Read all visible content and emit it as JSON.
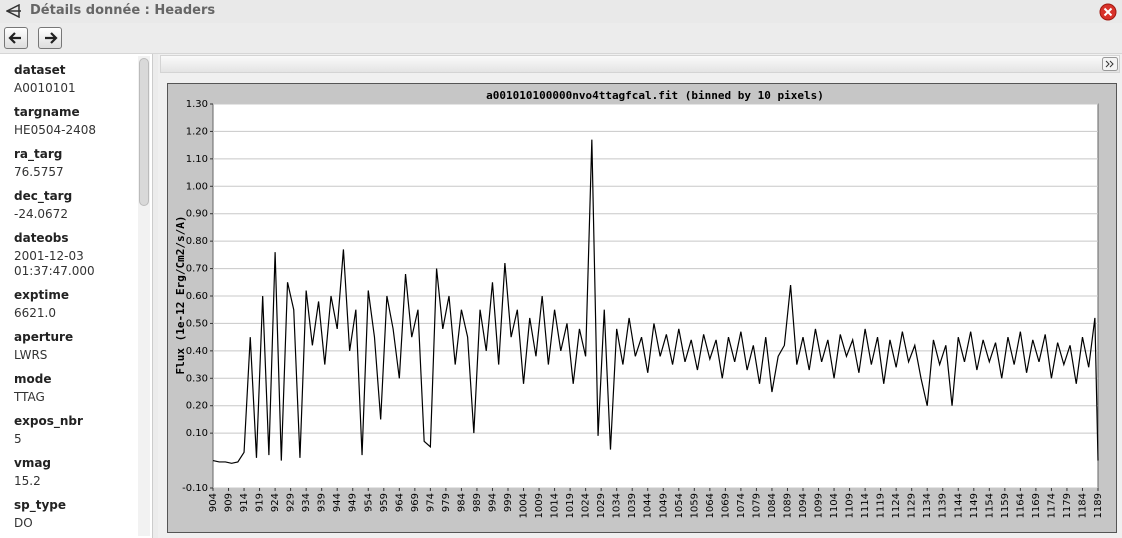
{
  "header": {
    "title": "Détails donnée : Headers"
  },
  "sidebar": {
    "fields": [
      {
        "label": "dataset",
        "value": "A0010101"
      },
      {
        "label": "targname",
        "value": "HE0504-2408"
      },
      {
        "label": "ra_targ",
        "value": "76.5757"
      },
      {
        "label": "dec_targ",
        "value": "-24.0672"
      },
      {
        "label": "dateobs",
        "value": "2001-12-03 01:37:47.000"
      },
      {
        "label": "exptime",
        "value": "6621.0"
      },
      {
        "label": "aperture",
        "value": "LWRS"
      },
      {
        "label": "mode",
        "value": "TTAG"
      },
      {
        "label": "expos_nbr",
        "value": "5"
      },
      {
        "label": "vmag",
        "value": "15.2"
      },
      {
        "label": "sp_type",
        "value": "DO"
      }
    ]
  },
  "chart_data": {
    "type": "line",
    "title": "a001010100000nvo4ttagfcal.fit (binned by 10 pixels)",
    "y_label": "Flux (1e-12 Erg/Cm2/s/A)",
    "color": "#000000",
    "grid": true,
    "x": [
      904,
      906,
      908,
      910,
      912,
      914,
      916,
      918,
      920,
      922,
      924,
      926,
      928,
      930,
      932,
      934,
      936,
      938,
      940,
      942,
      944,
      946,
      948,
      950,
      952,
      954,
      956,
      958,
      960,
      962,
      964,
      966,
      968,
      970,
      972,
      974,
      976,
      978,
      980,
      982,
      984,
      986,
      988,
      990,
      992,
      994,
      996,
      998,
      1000,
      1002,
      1004,
      1006,
      1008,
      1010,
      1012,
      1014,
      1016,
      1018,
      1020,
      1022,
      1024,
      1026,
      1028,
      1030,
      1032,
      1034,
      1036,
      1038,
      1040,
      1042,
      1044,
      1046,
      1048,
      1050,
      1052,
      1054,
      1056,
      1058,
      1060,
      1062,
      1064,
      1066,
      1068,
      1070,
      1072,
      1074,
      1076,
      1078,
      1080,
      1082,
      1084,
      1086,
      1088,
      1090,
      1092,
      1094,
      1096,
      1098,
      1100,
      1102,
      1104,
      1106,
      1108,
      1110,
      1112,
      1114,
      1116,
      1118,
      1120,
      1122,
      1124,
      1126,
      1128,
      1130,
      1132,
      1134,
      1136,
      1138,
      1140,
      1142,
      1144,
      1146,
      1148,
      1150,
      1152,
      1154,
      1156,
      1158,
      1160,
      1162,
      1164,
      1166,
      1168,
      1170,
      1172,
      1174,
      1176,
      1178,
      1180,
      1182,
      1184,
      1186,
      1188,
      1189
    ],
    "values": [
      0,
      -0.005,
      -0.005,
      -0.01,
      -0.005,
      0.03,
      0.45,
      0.01,
      0.6,
      0.02,
      0.76,
      0,
      0.65,
      0.55,
      0.01,
      0.62,
      0.42,
      0.58,
      0.35,
      0.6,
      0.48,
      0.77,
      0.4,
      0.55,
      0.02,
      0.62,
      0.45,
      0.15,
      0.6,
      0.48,
      0.3,
      0.68,
      0.45,
      0.55,
      0.07,
      0.05,
      0.7,
      0.48,
      0.6,
      0.35,
      0.55,
      0.45,
      0.1,
      0.55,
      0.4,
      0.65,
      0.35,
      0.72,
      0.45,
      0.55,
      0.28,
      0.52,
      0.38,
      0.6,
      0.35,
      0.55,
      0.4,
      0.5,
      0.28,
      0.48,
      0.38,
      1.17,
      0.09,
      0.55,
      0.04,
      0.48,
      0.35,
      0.52,
      0.38,
      0.45,
      0.32,
      0.5,
      0.38,
      0.46,
      0.35,
      0.48,
      0.36,
      0.44,
      0.33,
      0.46,
      0.37,
      0.44,
      0.3,
      0.45,
      0.36,
      0.47,
      0.33,
      0.42,
      0.28,
      0.45,
      0.25,
      0.38,
      0.42,
      0.64,
      0.35,
      0.45,
      0.33,
      0.48,
      0.36,
      0.44,
      0.3,
      0.46,
      0.38,
      0.44,
      0.32,
      0.48,
      0.35,
      0.45,
      0.28,
      0.44,
      0.34,
      0.47,
      0.36,
      0.42,
      0.3,
      0.2,
      0.44,
      0.35,
      0.42,
      0.2,
      0.45,
      0.36,
      0.47,
      0.33,
      0.44,
      0.36,
      0.43,
      0.3,
      0.45,
      0.35,
      0.47,
      0.32,
      0.44,
      0.36,
      0.46,
      0.3,
      0.43,
      0.35,
      0.42,
      0.28,
      0.45,
      0.34,
      0.52,
      0
    ],
    "xlim": [
      904,
      1189
    ],
    "xticks": [
      904,
      909,
      914,
      919,
      924,
      929,
      934,
      939,
      944,
      949,
      954,
      959,
      964,
      969,
      974,
      979,
      984,
      989,
      994,
      999,
      1004,
      1009,
      1014,
      1019,
      1024,
      1029,
      1034,
      1039,
      1044,
      1049,
      1054,
      1059,
      1064,
      1069,
      1074,
      1079,
      1084,
      1089,
      1094,
      1099,
      1104,
      1109,
      1114,
      1119,
      1124,
      1129,
      1134,
      1139,
      1144,
      1149,
      1154,
      1159,
      1164,
      1169,
      1174,
      1179,
      1184,
      1189
    ],
    "ylim": [
      -0.1,
      1.3
    ],
    "yticks": [
      {
        "value": -0.1,
        "label": "-0.10"
      },
      {
        "value": 0.1,
        "label": "0.10"
      },
      {
        "value": 0.2,
        "label": "0.20"
      },
      {
        "value": 0.3,
        "label": "0.30"
      },
      {
        "value": 0.4,
        "label": "0.40"
      },
      {
        "value": 0.5,
        "label": "0.50"
      },
      {
        "value": 0.6,
        "label": "0.60"
      },
      {
        "value": 0.7,
        "label": "0.70"
      },
      {
        "value": 0.8,
        "label": "0.80"
      },
      {
        "value": 0.9,
        "label": "0.90"
      },
      {
        "value": 1.0,
        "label": "1.00"
      },
      {
        "value": 1.1,
        "label": "1.10"
      },
      {
        "value": 1.2,
        "label": "1.20"
      },
      {
        "value": 1.3,
        "label": "1.30"
      }
    ]
  }
}
